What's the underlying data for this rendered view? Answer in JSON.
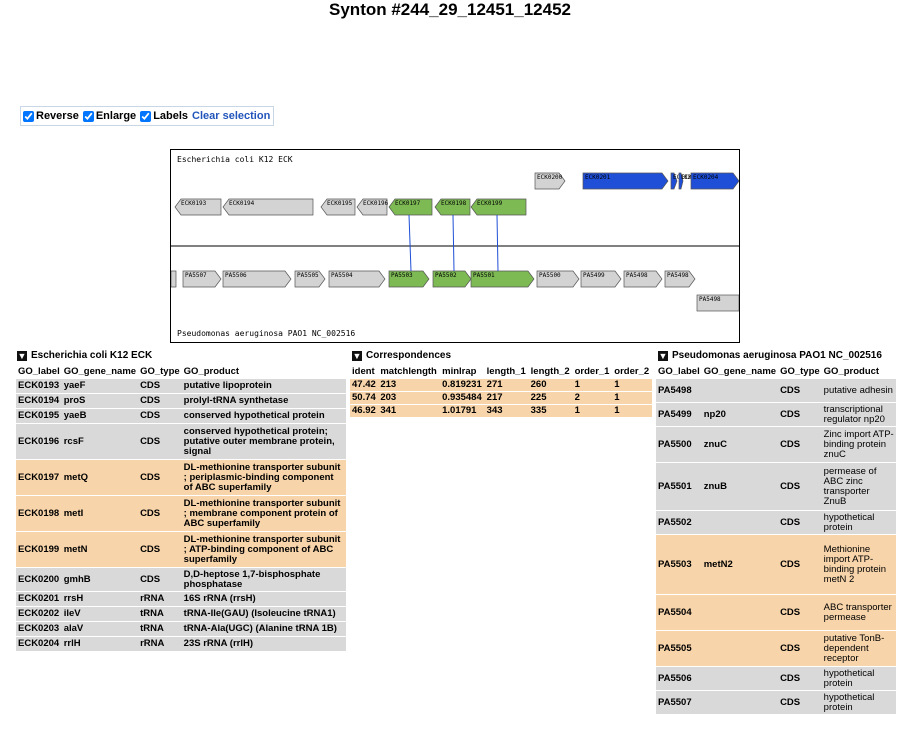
{
  "page_title": "Synton #244_29_12451_12452",
  "controls": {
    "reverse": {
      "label": "Reverse",
      "checked": true
    },
    "enlarge": {
      "label": "Enlarge",
      "checked": true
    },
    "labels": {
      "label": "Labels",
      "checked": true
    },
    "clear_selection": "Clear selection"
  },
  "colors": {
    "gene_default": "#d3d3d3",
    "gene_match": "#7dba54",
    "gene_selected": "#1f4fd6",
    "link": "#1f4fd6",
    "row_gray": "#d9d9d9",
    "row_orange": "#f7d4aa",
    "clear_link": "#2255bb"
  },
  "diagram": {
    "top_species": "Escherichia coli K12 ECK",
    "bottom_species": "Pseudomonas aeruginosa PAO1 NC_002516",
    "top_genes": [
      "ECK0193",
      "ECK0194",
      "ECK0195",
      "ECK0196",
      "ECK0197",
      "ECK0198",
      "ECK0199",
      "ECK0200",
      "ECK0201",
      "ECK0202",
      "ECK0203",
      "ECK0204"
    ],
    "bottom_genes": [
      "PA5507",
      "PA5506",
      "PA5505",
      "PA5504",
      "PA5503",
      "PA5502",
      "PA5501",
      "PA5500",
      "PA5499",
      "PA5498"
    ]
  },
  "left_section": {
    "icon": "download-arrow-icon",
    "title": "Escherichia coli K12 ECK",
    "headers": [
      "GO_label",
      "GO_gene_name",
      "GO_type",
      "GO_product"
    ],
    "rows": [
      {
        "label": "ECK0193",
        "gene": "yaeF",
        "type": "CDS",
        "product": "putative lipoprotein",
        "hl": "g"
      },
      {
        "label": "ECK0194",
        "gene": "proS",
        "type": "CDS",
        "product": "prolyl-tRNA synthetase",
        "hl": "g"
      },
      {
        "label": "ECK0195",
        "gene": "yaeB",
        "type": "CDS",
        "product": "conserved hypothetical protein",
        "hl": "g"
      },
      {
        "label": "ECK0196",
        "gene": "rcsF",
        "type": "CDS",
        "product": "conserved hypothetical protein; putative outer membrane protein, signal",
        "hl": "g"
      },
      {
        "label": "ECK0197",
        "gene": "metQ",
        "type": "CDS",
        "product": "DL-methionine transporter subunit ; periplasmic-binding component of ABC superfamily",
        "hl": "o"
      },
      {
        "label": "ECK0198",
        "gene": "metI",
        "type": "CDS",
        "product": "DL-methionine transporter subunit ; membrane component protein of ABC superfamily",
        "hl": "o"
      },
      {
        "label": "ECK0199",
        "gene": "metN",
        "type": "CDS",
        "product": "DL-methionine transporter subunit ; ATP-binding component of ABC superfamily",
        "hl": "o"
      },
      {
        "label": "ECK0200",
        "gene": "gmhB",
        "type": "CDS",
        "product": "D,D-heptose 1,7-bisphosphate phosphatase",
        "hl": "g"
      },
      {
        "label": "ECK0201",
        "gene": "rrsH",
        "type": "rRNA",
        "product": "16S rRNA (rrsH)",
        "hl": "g"
      },
      {
        "label": "ECK0202",
        "gene": "ileV",
        "type": "tRNA",
        "product": "tRNA-Ile(GAU) (Isoleucine tRNA1)",
        "hl": "g"
      },
      {
        "label": "ECK0203",
        "gene": "alaV",
        "type": "tRNA",
        "product": "tRNA-Ala(UGC) (Alanine tRNA 1B)",
        "hl": "g"
      },
      {
        "label": "ECK0204",
        "gene": "rrlH",
        "type": "rRNA",
        "product": "23S rRNA (rrlH)",
        "hl": "g"
      }
    ]
  },
  "mid_section": {
    "icon": "download-arrow-icon",
    "title": "Correspondences",
    "headers": [
      "ident",
      "matchlength",
      "minlrap",
      "length_1",
      "length_2",
      "order_1",
      "order_2"
    ],
    "rows": [
      [
        "47.42",
        "213",
        "0.819231",
        "271",
        "260",
        "1",
        "1"
      ],
      [
        "50.74",
        "203",
        "0.935484",
        "217",
        "225",
        "2",
        "1"
      ],
      [
        "46.92",
        "341",
        "1.01791",
        "343",
        "335",
        "1",
        "1"
      ]
    ]
  },
  "right_section": {
    "icon": "download-arrow-icon",
    "title": "Pseudomonas aeruginosa PAO1 NC_002516",
    "headers": [
      "GO_label",
      "GO_gene_name",
      "GO_type",
      "GO_product"
    ],
    "rows": [
      {
        "label": "PA5498",
        "gene": "",
        "type": "CDS",
        "product": "putative adhesin",
        "hl": "g"
      },
      {
        "label": "PA5499",
        "gene": "np20",
        "type": "CDS",
        "product": "transcriptional regulator np20",
        "hl": "g"
      },
      {
        "label": "PA5500",
        "gene": "znuC",
        "type": "CDS",
        "product": "Zinc import ATP-binding protein znuC",
        "hl": "g"
      },
      {
        "label": "PA5501",
        "gene": "znuB",
        "type": "CDS",
        "product": "permease of ABC zinc transporter ZnuB",
        "hl": "g"
      },
      {
        "label": "PA5502",
        "gene": "",
        "type": "CDS",
        "product": "hypothetical protein",
        "hl": "g"
      },
      {
        "label": "PA5503",
        "gene": "metN2",
        "type": "CDS",
        "product": "Methionine import ATP-binding protein metN 2",
        "hl": "o"
      },
      {
        "label": "PA5504",
        "gene": "",
        "type": "CDS",
        "product": "ABC transporter permease",
        "hl": "o"
      },
      {
        "label": "PA5505",
        "gene": "",
        "type": "CDS",
        "product": "putative TonB-dependent receptor",
        "hl": "o"
      },
      {
        "label": "PA5506",
        "gene": "",
        "type": "CDS",
        "product": "hypothetical protein",
        "hl": "g"
      },
      {
        "label": "PA5507",
        "gene": "",
        "type": "CDS",
        "product": "hypothetical protein",
        "hl": "g"
      }
    ]
  }
}
